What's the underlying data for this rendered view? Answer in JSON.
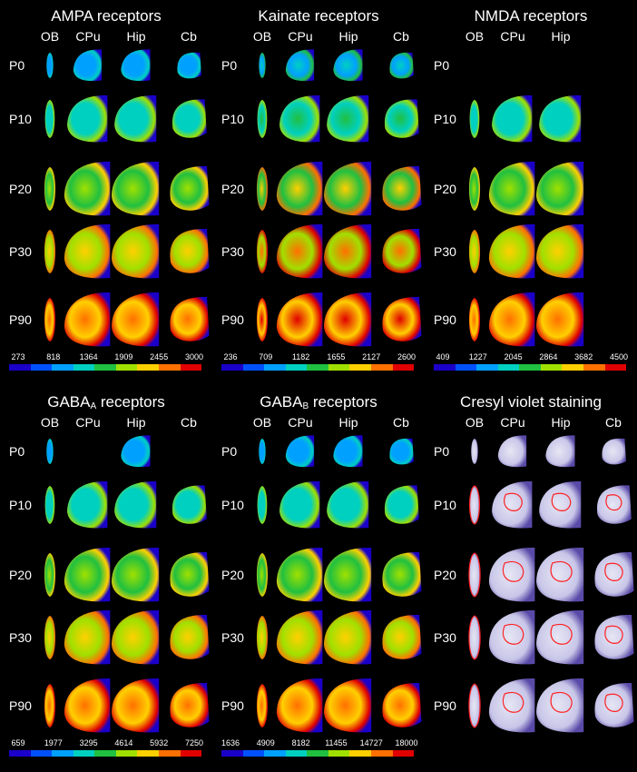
{
  "panels": [
    {
      "title": "AMPA receptors",
      "sub": "",
      "cols": [
        "OB",
        "CPu",
        "Hip",
        "Cb"
      ],
      "rows": [
        "P0",
        "P10",
        "P20",
        "P30",
        "P90"
      ],
      "ticks": [
        "273",
        "818",
        "1364",
        "1909",
        "2455",
        "3000"
      ],
      "missing": []
    },
    {
      "title": "Kainate receptors",
      "sub": "",
      "cols": [
        "OB",
        "CPu",
        "Hip",
        "Cb"
      ],
      "rows": [
        "P0",
        "P10",
        "P20",
        "P30",
        "P90"
      ],
      "ticks": [
        "236",
        "709",
        "1182",
        "1655",
        "2127",
        "2600"
      ],
      "missing": []
    },
    {
      "title": "NMDA receptors",
      "sub": "",
      "cols": [
        "OB",
        "CPu",
        "Hip"
      ],
      "rows": [
        "P0",
        "P10",
        "P20",
        "P30",
        "P90"
      ],
      "ticks": [
        "409",
        "1227",
        "2045",
        "2864",
        "3682",
        "4500"
      ],
      "missing": [
        "0-0",
        "0-1",
        "0-2"
      ]
    },
    {
      "title": "GABA",
      "sub": "A",
      "suffix": " receptors",
      "cols": [
        "OB",
        "CPu",
        "Hip",
        "Cb"
      ],
      "rows": [
        "P0",
        "P10",
        "P20",
        "P30",
        "P90"
      ],
      "ticks": [
        "659",
        "1977",
        "3295",
        "4614",
        "5932",
        "7250"
      ],
      "missing": [
        "0-1",
        "0-3"
      ]
    },
    {
      "title": "GABA",
      "sub": "B",
      "suffix": " receptors",
      "cols": [
        "OB",
        "CPu",
        "Hip",
        "Cb"
      ],
      "rows": [
        "P0",
        "P10",
        "P20",
        "P30",
        "P90"
      ],
      "ticks": [
        "1636",
        "4909",
        "8182",
        "11455",
        "14727",
        "18000"
      ],
      "missing": []
    },
    {
      "title": "Cresyl violet staining",
      "sub": "",
      "cols": [
        "OB",
        "CPu",
        "Hip",
        "Cb"
      ],
      "rows": [
        "P0",
        "P10",
        "P20",
        "P30",
        "P90"
      ],
      "ticks": [],
      "missing": [],
      "stain": true
    }
  ],
  "colors": {
    "colorbar": [
      "#1a00c8",
      "#0050ff",
      "#00a0ff",
      "#00d0c0",
      "#20c040",
      "#a0e000",
      "#ffd000",
      "#ff7000",
      "#e00000"
    ],
    "stain_bg": "#e6e6f4",
    "stain_dark": "#5a4aa8",
    "outline": "#ff2020"
  }
}
